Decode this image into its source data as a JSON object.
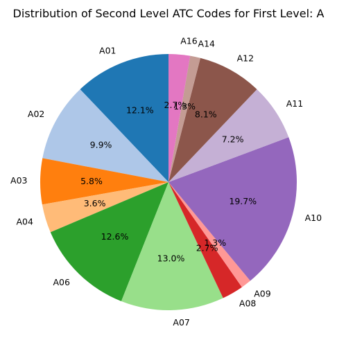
{
  "chart_data": {
    "type": "pie",
    "title": "Distribution of Second Level ATC Codes for First Level: A",
    "start_angle_deg": 90,
    "direction": "counterclockwise",
    "slices": [
      {
        "label": "A01",
        "value": 12.1,
        "pct_label": "12.1%",
        "color": "#1f77b4"
      },
      {
        "label": "A02",
        "value": 9.9,
        "pct_label": "9.9%",
        "color": "#aec7e8"
      },
      {
        "label": "A03",
        "value": 5.8,
        "pct_label": "5.8%",
        "color": "#ff7f0e"
      },
      {
        "label": "A04",
        "value": 3.6,
        "pct_label": "3.6%",
        "color": "#ffbb78"
      },
      {
        "label": "A06",
        "value": 12.6,
        "pct_label": "12.6%",
        "color": "#2ca02c"
      },
      {
        "label": "A07",
        "value": 13.0,
        "pct_label": "13.0%",
        "color": "#98df8a"
      },
      {
        "label": "A08",
        "value": 2.7,
        "pct_label": "2.7%",
        "color": "#d62728"
      },
      {
        "label": "A09",
        "value": 1.3,
        "pct_label": "1.3%",
        "color": "#ff9896"
      },
      {
        "label": "A10",
        "value": 19.7,
        "pct_label": "19.7%",
        "color": "#9467bd"
      },
      {
        "label": "A11",
        "value": 7.2,
        "pct_label": "7.2%",
        "color": "#c5b0d5"
      },
      {
        "label": "A12",
        "value": 8.1,
        "pct_label": "8.1%",
        "color": "#8c564b"
      },
      {
        "label": "A14",
        "value": 1.3,
        "pct_label": "1.3%",
        "color": "#c49c94"
      },
      {
        "label": "A16",
        "value": 2.7,
        "pct_label": "2.7%",
        "color": "#e377c2"
      }
    ]
  }
}
